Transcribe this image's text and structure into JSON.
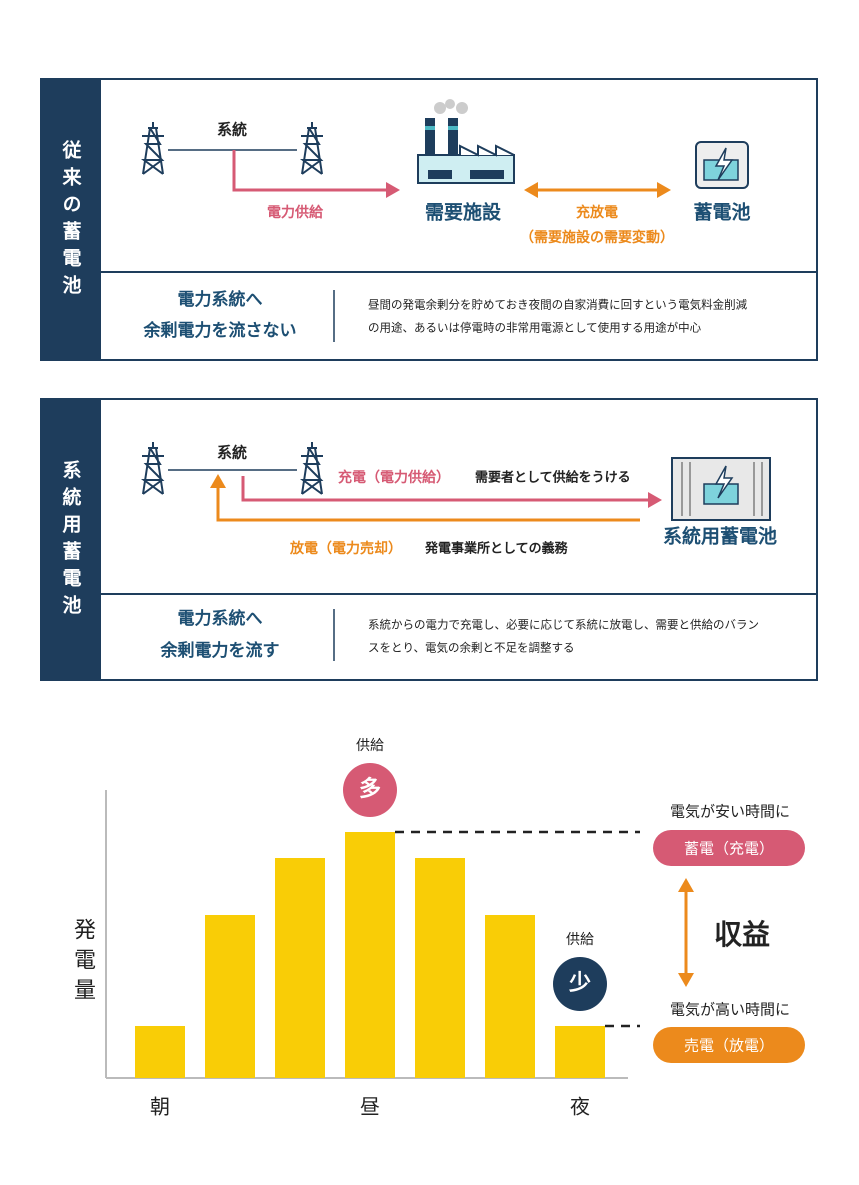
{
  "panel1": {
    "side": "従来の蓄電池",
    "grid": "系統",
    "supply": "電力供給",
    "facility": "需要施設",
    "exchange": "充放電",
    "exchange_note": "（需要施設の需要変動）",
    "battery": "蓄電池",
    "summary": [
      "電力系統へ",
      "余剰電力を流さない"
    ],
    "description": [
      "昼間の発電余剰分を貯めておき夜間の自家消費に回すという電気料金削減",
      "の用途、あるいは停電時の非常用電源として使用する用途が中心"
    ]
  },
  "panel2": {
    "side": "系統用蓄電池",
    "grid": "系統",
    "charge": "充電（電力供給）",
    "charge_note": "需要者として供給をうける",
    "discharge": "放電（電力売却）",
    "discharge_note": "発電事業所としての義務",
    "battery": "系統用蓄電池",
    "summary": [
      "電力系統へ",
      "余剰電力を流す"
    ],
    "description": [
      "系統からの電力で充電し、必要に応じて系統に放電し、需要と供給のバラン",
      "スをとり、電気の余剰と不足を調整する"
    ]
  },
  "chart_data": {
    "type": "bar",
    "y_label": "発電量",
    "categories": [
      "朝",
      null,
      null,
      "昼",
      null,
      null,
      "夜"
    ],
    "values": [
      52,
      163,
      220,
      246,
      220,
      163,
      52
    ],
    "color": "#f9cd06",
    "ylim": [
      0,
      288
    ],
    "peak_label": "供給",
    "peak_badge": "多",
    "low_label": "供給",
    "low_badge": "少",
    "cheap_time": "電気が安い時間に",
    "charge": "蓄電（充電）",
    "expensive_time": "電気が高い時間に",
    "discharge": "売電（放電）",
    "profit": "収益"
  }
}
